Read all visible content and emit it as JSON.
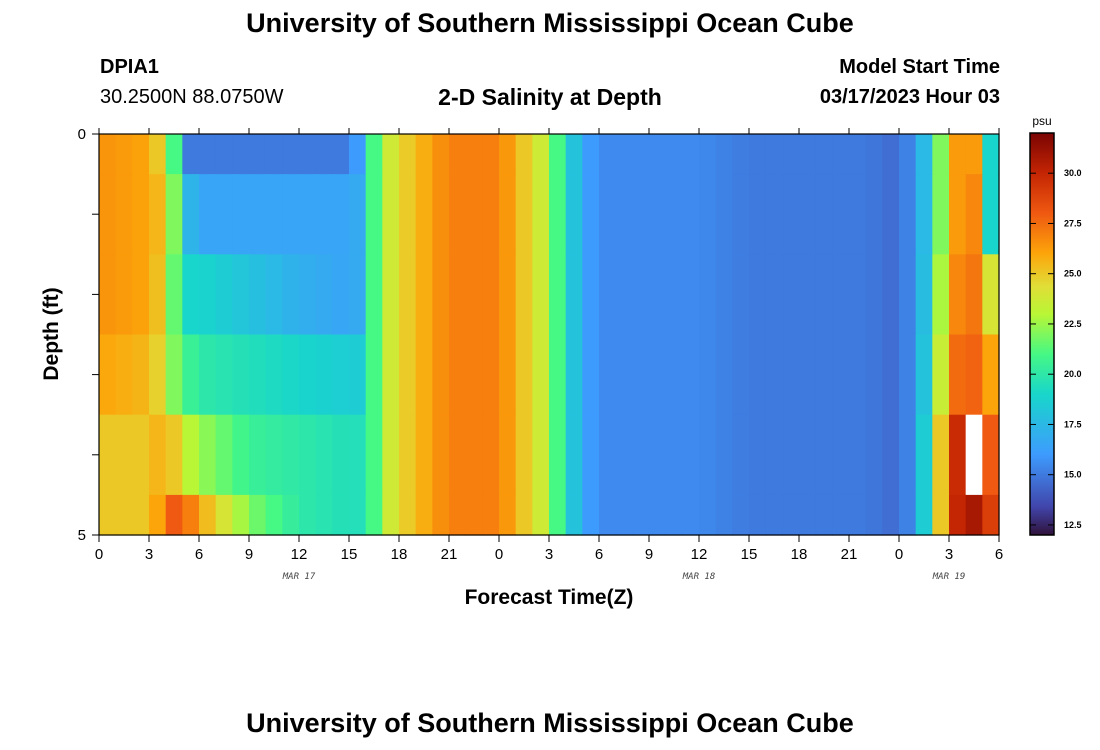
{
  "header": {
    "main_title": "University of Southern Mississippi Ocean Cube",
    "station": "DPIA1",
    "coords": "30.2500N  88.0750W",
    "chart_title": "2-D Salinity at Depth",
    "start_label": "Model Start Time",
    "start_value": "03/17/2023 Hour 03"
  },
  "footer": {
    "title": "University of Southern Mississippi Ocean Cube"
  },
  "colors": {
    "background": "#ffffff",
    "missing": "#ffffff"
  },
  "chart_data": {
    "type": "heatmap",
    "title": "2-D Salinity at Depth",
    "xlabel": "Forecast Time(Z)",
    "ylabel": "Depth (ft)",
    "x_ticks": [
      "0",
      "3",
      "6",
      "9",
      "12",
      "15",
      "18",
      "21",
      "0",
      "3",
      "6",
      "9",
      "12",
      "15",
      "18",
      "21",
      "0",
      "3",
      "6"
    ],
    "x_range_hours": [
      0,
      54
    ],
    "date_labels": [
      {
        "label": "MAR 17",
        "hour": 12
      },
      {
        "label": "MAR 18",
        "hour": 36
      },
      {
        "label": "MAR 19",
        "hour": 51
      }
    ],
    "y_ticks": [
      "0",
      "5"
    ],
    "y_range": [
      0,
      5
    ],
    "colorbar": {
      "unit": "psu",
      "min": 12,
      "max": 32,
      "ticks": [
        "12.5",
        "15.0",
        "17.5",
        "20.0",
        "22.5",
        "25.0",
        "27.5",
        "30.0"
      ]
    },
    "missing_cell": {
      "hour": 52,
      "layer": 4
    },
    "row_boundaries": [
      0,
      0.5,
      1.5,
      2.5,
      3.5,
      4.5,
      5
    ],
    "hours": [
      0,
      3,
      4,
      4.5,
      5,
      6,
      9,
      12,
      15,
      16,
      16.5,
      17,
      18,
      21,
      24,
      25.5,
      27,
      28,
      29.5,
      30,
      33,
      36,
      39,
      42,
      45,
      46,
      48,
      49,
      50,
      51,
      52,
      53,
      53.5,
      54
    ],
    "rows": [
      [
        26.5,
        26,
        24,
        21,
        15,
        15,
        15,
        15,
        15,
        17,
        21,
        23,
        24.5,
        27,
        27,
        25,
        23,
        19,
        16,
        15.5,
        15.5,
        15.5,
        15,
        15,
        15,
        15,
        14.5,
        16,
        19,
        25,
        27.5,
        25,
        19,
        13
      ],
      [
        26.5,
        26,
        25,
        22,
        18,
        16.5,
        16.5,
        16.5,
        16.5,
        17,
        21,
        23,
        24.5,
        27,
        27,
        25,
        23,
        19,
        16,
        15.5,
        15.5,
        15.5,
        15,
        15,
        15,
        15,
        14.5,
        16,
        19,
        25,
        27.5,
        26,
        19,
        16
      ],
      [
        26.5,
        26,
        24.5,
        21.5,
        19,
        19,
        18,
        17,
        16.5,
        17,
        21,
        23,
        24.5,
        27,
        27,
        25,
        23,
        19,
        16,
        15.5,
        15.5,
        15.5,
        15,
        15,
        15,
        15,
        14.5,
        16,
        19.5,
        26,
        27.5,
        27,
        24,
        19
      ],
      [
        26,
        25.5,
        24,
        22,
        21,
        20,
        19.5,
        19,
        18.5,
        18.5,
        21,
        23,
        24.5,
        27,
        27,
        25,
        23,
        19,
        16,
        15.5,
        15.5,
        15.5,
        15,
        15,
        15,
        15,
        14.5,
        16,
        20,
        27,
        28,
        27.5,
        26,
        20
      ],
      [
        25,
        25,
        26,
        25,
        23.5,
        22.5,
        20.5,
        20,
        19.5,
        19.5,
        21,
        23,
        24.5,
        27,
        27,
        25,
        23,
        19,
        16,
        15.5,
        15.5,
        15.5,
        15,
        15,
        15,
        15,
        14.5,
        16,
        21,
        29,
        30.5,
        30,
        28,
        28
      ],
      [
        25,
        25,
        27,
        28,
        28,
        26,
        22,
        20,
        19.5,
        19.5,
        21,
        23,
        24.5,
        27,
        27,
        25,
        23,
        19,
        16,
        15.5,
        15.5,
        15.5,
        15,
        15,
        15,
        15,
        14.5,
        16,
        21,
        29,
        31,
        30.5,
        29,
        29
      ]
    ]
  }
}
